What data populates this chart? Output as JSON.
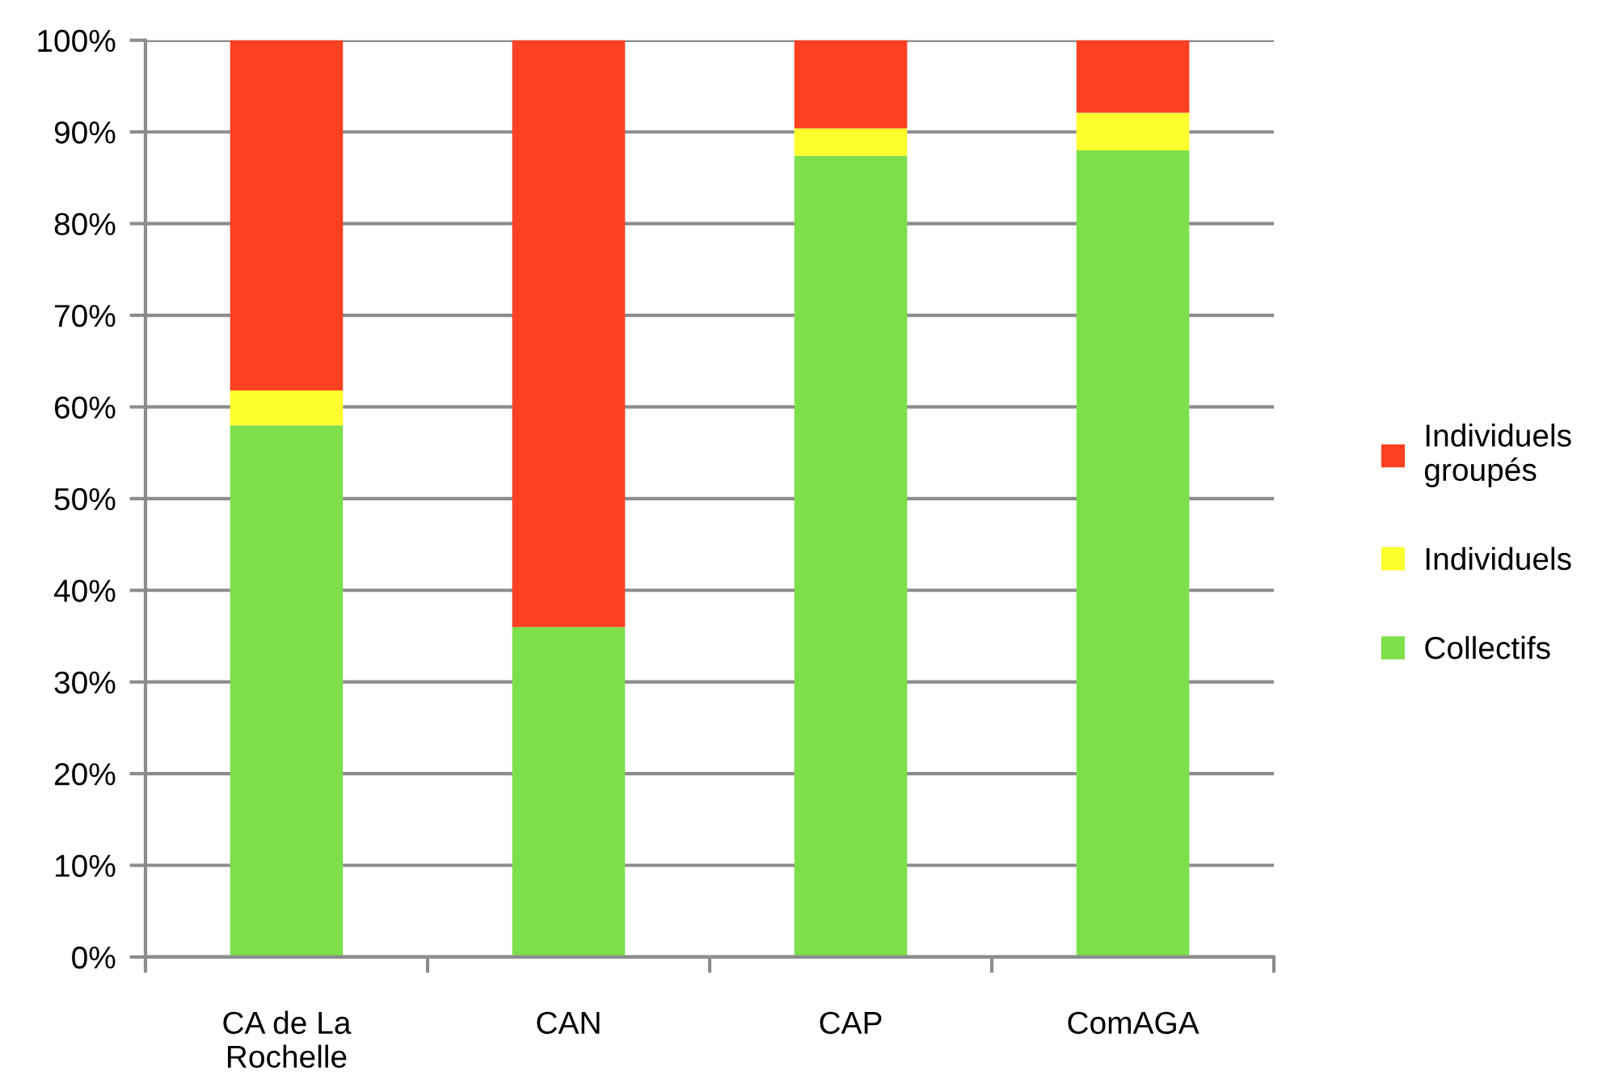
{
  "chart_data": {
    "type": "bar",
    "stacked": true,
    "categories": [
      "CA de La Rochelle",
      "CAN",
      "CAP",
      "ComAGA"
    ],
    "series": [
      {
        "name": "Collectifs",
        "color": "#7ddf4b",
        "values": [
          58,
          36,
          87.4,
          88
        ]
      },
      {
        "name": "Individuels",
        "color": "#fefe2e",
        "values": [
          3.8,
          0,
          3,
          4.1
        ]
      },
      {
        "name": "Individuels groupés",
        "color": "#fc4022",
        "values": [
          38.2,
          64,
          9.6,
          7.9
        ]
      }
    ],
    "ylim": [
      0,
      100
    ],
    "yticks": [
      {
        "value": 0,
        "label": "0%"
      },
      {
        "value": 10,
        "label": "10%"
      },
      {
        "value": 20,
        "label": "20%"
      },
      {
        "value": 30,
        "label": "30%"
      },
      {
        "value": 40,
        "label": "40%"
      },
      {
        "value": 50,
        "label": "50%"
      },
      {
        "value": 60,
        "label": "60%"
      },
      {
        "value": 70,
        "label": "70%"
      },
      {
        "value": 80,
        "label": "80%"
      },
      {
        "value": 90,
        "label": "90%"
      },
      {
        "value": 100,
        "label": "100%"
      }
    ],
    "grid": "y",
    "legend": "right"
  }
}
